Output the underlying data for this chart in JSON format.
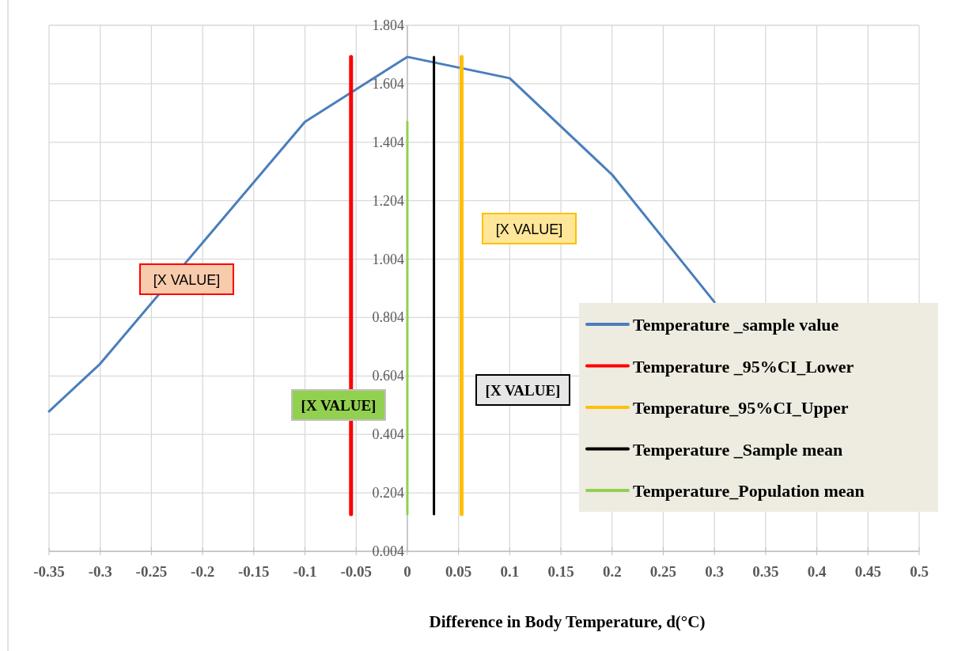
{
  "chart_data": {
    "type": "line",
    "xlabel": "Difference in Body Temperature, d(°C)",
    "xlim": [
      -0.35,
      0.5
    ],
    "xticks": [
      -0.35,
      -0.3,
      -0.25,
      -0.2,
      -0.15,
      -0.1,
      -0.05,
      0,
      0.05,
      0.1,
      0.15,
      0.2,
      0.25,
      0.3,
      0.35,
      0.4,
      0.45,
      0.5
    ],
    "ylim": [
      0.004,
      1.804
    ],
    "yticks": [
      0.004,
      0.204,
      0.404,
      0.604,
      0.804,
      1.004,
      1.204,
      1.404,
      1.604,
      1.804
    ],
    "grid": true,
    "legend": "bottom right",
    "marker": "none",
    "line_style": "solid",
    "series": [
      {
        "name": "Temperature _sample value",
        "color": "#4a7ebb",
        "x": [
          -0.35,
          -0.3,
          -0.1,
          0,
          0.1,
          0.2,
          0.3
        ],
        "values": [
          0.483,
          0.646,
          1.474,
          1.696,
          1.623,
          1.293,
          0.857
        ]
      },
      {
        "name": "Temperature _95%CI_Lower",
        "color": "#ff0000",
        "x": [
          -0.055,
          -0.055
        ],
        "values": [
          0.131,
          1.696
        ]
      },
      {
        "name": "Temperature_95%CI_Upper",
        "color": "#ffc000",
        "x": [
          0.053,
          0.053
        ],
        "values": [
          0.131,
          1.696
        ]
      },
      {
        "name": "Temperature _Sample mean",
        "color": "#000000",
        "x": [
          0.026,
          0.026
        ],
        "values": [
          0.131,
          1.696
        ]
      },
      {
        "name": "Temperature_Population mean",
        "color": "#92d050",
        "x": [
          0,
          0
        ],
        "values": [
          0.131,
          1.474
        ]
      }
    ],
    "annotations": [
      "[X VALUE]",
      "[X VALUE]",
      "[X VALUE]",
      "[X VALUE]"
    ]
  }
}
